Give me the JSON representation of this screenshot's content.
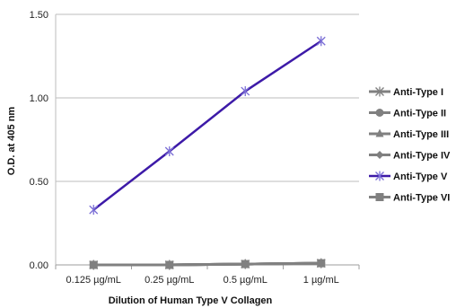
{
  "chart_data": {
    "type": "line",
    "title": "",
    "xlabel": "Dilution of Human Type V Collagen",
    "ylabel": "O.D. at 405 nm",
    "categories": [
      "0.125 µg/mL",
      "0.25 µg/mL",
      "0.5 µg/mL",
      "1 µg/mL"
    ],
    "y_ticks": [
      "0.00",
      "0.50",
      "1.00",
      "1.50"
    ],
    "ylim": [
      0,
      1.5
    ],
    "grid": "horizontal",
    "legend_position": "right",
    "series": [
      {
        "name": "Anti-Type I",
        "values": [
          0.0,
          0.0,
          0.005,
          0.01
        ],
        "color": "#808080",
        "marker": "asterisk"
      },
      {
        "name": "Anti-Type II",
        "values": [
          0.0,
          0.0,
          0.005,
          0.01
        ],
        "color": "#808080",
        "marker": "circle"
      },
      {
        "name": "Anti-Type III",
        "values": [
          0.0,
          0.0,
          0.005,
          0.01
        ],
        "color": "#808080",
        "marker": "triangle"
      },
      {
        "name": "Anti-Type IV",
        "values": [
          0.0,
          0.0,
          0.005,
          0.01
        ],
        "color": "#808080",
        "marker": "diamond"
      },
      {
        "name": "Anti-Type V",
        "values": [
          0.33,
          0.68,
          1.04,
          1.34
        ],
        "color": "#3d1aa8",
        "marker": "asterisk"
      },
      {
        "name": "Anti-Type VI",
        "values": [
          0.0,
          0.0,
          0.005,
          0.01
        ],
        "color": "#808080",
        "marker": "square"
      }
    ]
  }
}
